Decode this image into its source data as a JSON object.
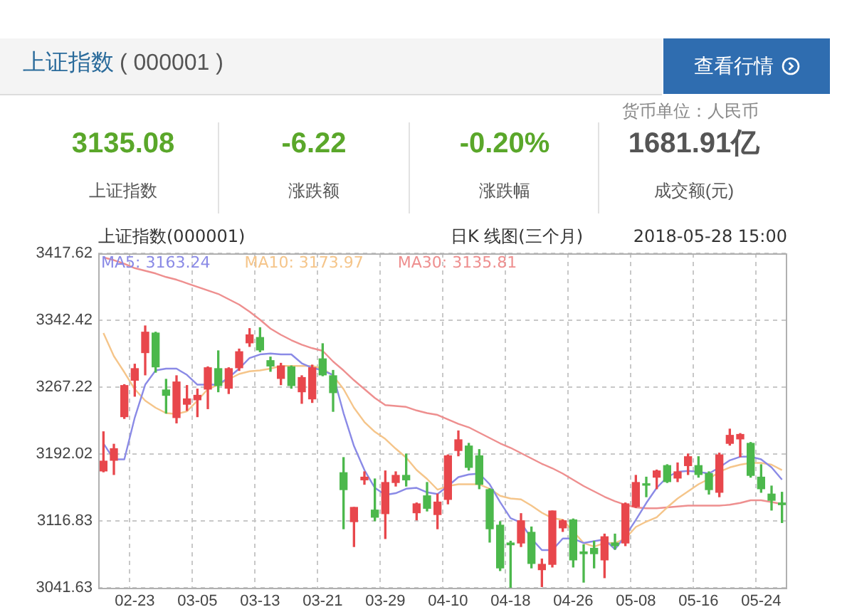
{
  "chart_data": [
    {
      "type": "other",
      "title": "上证指数",
      "subtitle": "( 000001 )",
      "annotations": [
        "查看行情",
        "货币单位：人民币",
        "3135.08",
        "上证指数",
        "-6.22",
        "涨跌额",
        "-0.20%",
        "涨跌幅",
        "1681.91亿",
        "成交额(元)"
      ]
    },
    {
      "type": "candlestick",
      "title": "上证指数(000001)",
      "subtitle": "日K 线图(三个月)",
      "annotations": [
        "2018-05-28 15:00"
      ],
      "categories": [
        null,
        null,
        null,
        "02-23",
        null,
        null,
        null,
        null,
        null,
        "03-05",
        null,
        null,
        null,
        null,
        null,
        "03-13",
        null,
        null,
        null,
        null,
        null,
        "03-21",
        null,
        null,
        null,
        null,
        null,
        "03-29",
        null,
        null,
        null,
        null,
        null,
        "04-10",
        null,
        null,
        null,
        null,
        null,
        "04-18",
        null,
        null,
        null,
        null,
        null,
        "04-26",
        null,
        null,
        null,
        null,
        null,
        "05-08",
        null,
        null,
        null,
        null,
        null,
        "05-16",
        null,
        null,
        null,
        null,
        null,
        "05-24",
        null,
        null
      ],
      "ohlc": [
        [
          3173,
          3217,
          3172,
          3184
        ],
        [
          3185,
          3203,
          3169,
          3198
        ],
        [
          3234,
          3270,
          3232,
          3269
        ],
        [
          3275,
          3293,
          3257,
          3288
        ],
        [
          3306,
          3336,
          3281,
          3329
        ],
        [
          3328,
          3329,
          3284,
          3290
        ],
        [
          3264,
          3276,
          3238,
          3258
        ],
        [
          3233,
          3280,
          3227,
          3273
        ],
        [
          3248,
          3269,
          3241,
          3254
        ],
        [
          3253,
          3265,
          3234,
          3258
        ],
        [
          3265,
          3290,
          3243,
          3289
        ],
        [
          3288,
          3308,
          3262,
          3269
        ],
        [
          3266,
          3289,
          3260,
          3288
        ],
        [
          3289,
          3310,
          3286,
          3307
        ],
        [
          3317,
          3333,
          3313,
          3326
        ],
        [
          3323,
          3334,
          3307,
          3309
        ],
        [
          3297,
          3301,
          3285,
          3291
        ],
        [
          3277,
          3294,
          3270,
          3291
        ],
        [
          3290,
          3291,
          3266,
          3269
        ],
        [
          3262,
          3280,
          3249,
          3278
        ],
        [
          3254,
          3292,
          3250,
          3289
        ],
        [
          3299,
          3316,
          3280,
          3281
        ],
        [
          3280,
          3286,
          3240,
          3261
        ],
        [
          3171,
          3188,
          3108,
          3152
        ],
        [
          3116,
          3132,
          3088,
          3132
        ],
        [
          3163,
          3172,
          3158,
          3166
        ],
        [
          3129,
          3164,
          3117,
          3121
        ],
        [
          3125,
          3173,
          3097,
          3160
        ],
        [
          3160,
          3172,
          3156,
          3168
        ],
        [
          3168,
          3192,
          3156,
          3163
        ],
        [
          3126,
          3137,
          3118,
          3136
        ],
        [
          3145,
          3160,
          3128,
          3131
        ],
        [
          3124,
          3147,
          3108,
          3138
        ],
        [
          3141,
          3191,
          3136,
          3190
        ],
        [
          3196,
          3218,
          3190,
          3208
        ],
        [
          3201,
          3204,
          3174,
          3177
        ],
        [
          3190,
          3197,
          3153,
          3158
        ],
        [
          3152,
          3153,
          3093,
          3108
        ],
        [
          3112,
          3116,
          3061,
          3064
        ],
        [
          3092,
          3094,
          3042,
          3090
        ],
        [
          3092,
          3125,
          3088,
          3117
        ],
        [
          3104,
          3110,
          3064,
          3069
        ],
        [
          3062,
          3074,
          3043,
          3068
        ],
        [
          3068,
          3128,
          3065,
          3128
        ],
        [
          3109,
          3118,
          3105,
          3117
        ],
        [
          3118,
          3119,
          3065,
          3073
        ],
        [
          3082,
          3090,
          3048,
          3080
        ],
        [
          3086,
          3094,
          3064,
          3080
        ],
        [
          3073,
          3102,
          3053,
          3099
        ],
        [
          3092,
          3102,
          3085,
          3089
        ],
        [
          3092,
          3137,
          3089,
          3136
        ],
        [
          3133,
          3168,
          3132,
          3160
        ],
        [
          3158,
          3166,
          3144,
          3157
        ],
        [
          3166,
          3174,
          3153,
          3173
        ],
        [
          3179,
          3180,
          3160,
          3161
        ],
        [
          3165,
          3182,
          3161,
          3172
        ],
        [
          3179,
          3192,
          3169,
          3189
        ],
        [
          3179,
          3189,
          3166,
          3169
        ],
        [
          3170,
          3172,
          3147,
          3152
        ],
        [
          3149,
          3193,
          3144,
          3191
        ],
        [
          3204,
          3220,
          3202,
          3213
        ],
        [
          3209,
          3215,
          3189,
          3214
        ],
        [
          3204,
          3205,
          3166,
          3168
        ],
        [
          3166,
          3180,
          3149,
          3153
        ],
        [
          3147,
          3156,
          3129,
          3140
        ],
        [
          3137,
          3149,
          3115,
          3135.08
        ]
      ],
      "series": [
        {
          "name": "MA5: 3163.24",
          "type": "line",
          "color": "#8a8ae6",
          "values": [
            3204,
            3186,
            3186,
            3233,
            3270,
            3286,
            3288,
            3288,
            3281,
            3270,
            3270,
            3270,
            3278,
            3288,
            3300,
            3304,
            3305,
            3304,
            3304,
            3294,
            3289,
            3286,
            3281,
            3238,
            3201,
            3174,
            3154,
            3146,
            3148,
            3153,
            3154,
            3149,
            3147,
            3156,
            3166,
            3169,
            3170,
            3158,
            3138,
            3120,
            3115,
            3097,
            3084,
            3084,
            3097,
            3097,
            3092,
            3094,
            3096,
            3085,
            3100,
            3118,
            3137,
            3154,
            3166,
            3172,
            3173,
            3172,
            3170,
            3177,
            3185,
            3189,
            3189,
            3186,
            3177,
            3163.24
          ]
        },
        {
          "name": "MA10: 3173.97",
          "type": "line",
          "color": "#f5c58a",
          "values": [
            3328,
            3302,
            3284,
            3265,
            3252,
            3244,
            3238,
            3237,
            3240,
            3252,
            3265,
            3270,
            3276,
            3282,
            3285,
            3286,
            3288,
            3291,
            3291,
            3291,
            3291,
            3288,
            3280,
            3265,
            3244,
            3228,
            3217,
            3209,
            3198,
            3188,
            3174,
            3164,
            3152,
            3156,
            3158,
            3158,
            3158,
            3153,
            3145,
            3142,
            3141,
            3134,
            3126,
            3120,
            3118,
            3105,
            3092,
            3088,
            3092,
            3092,
            3097,
            3110,
            3116,
            3121,
            3132,
            3142,
            3150,
            3158,
            3164,
            3172,
            3177,
            3180,
            3182,
            3182,
            3180,
            3173.97
          ]
        },
        {
          "name": "MA30: 3135.81",
          "type": "line",
          "color": "#ee8f8f",
          "values": [
            3413,
            3410,
            3406,
            3401,
            3398,
            3395,
            3391,
            3388,
            3384,
            3380,
            3376,
            3372,
            3366,
            3360,
            3352,
            3343,
            3333,
            3326,
            3320,
            3315,
            3311,
            3308,
            3296,
            3286,
            3275,
            3265,
            3255,
            3247,
            3246,
            3245,
            3241,
            3238,
            3236,
            3231,
            3226,
            3222,
            3216,
            3210,
            3204,
            3199,
            3193,
            3187,
            3181,
            3176,
            3170,
            3163,
            3156,
            3150,
            3144,
            3139,
            3135,
            3132,
            3131,
            3131,
            3132,
            3133,
            3134,
            3134,
            3134,
            3134,
            3135,
            3137,
            3140,
            3140,
            3138,
            3135.81
          ]
        }
      ],
      "ylim": [
        3041.63,
        3417.62
      ],
      "yticks": [
        3041.63,
        3116.83,
        3192.02,
        3267.22,
        3342.42,
        3417.62
      ],
      "grid": true,
      "legend": "top left"
    }
  ]
}
